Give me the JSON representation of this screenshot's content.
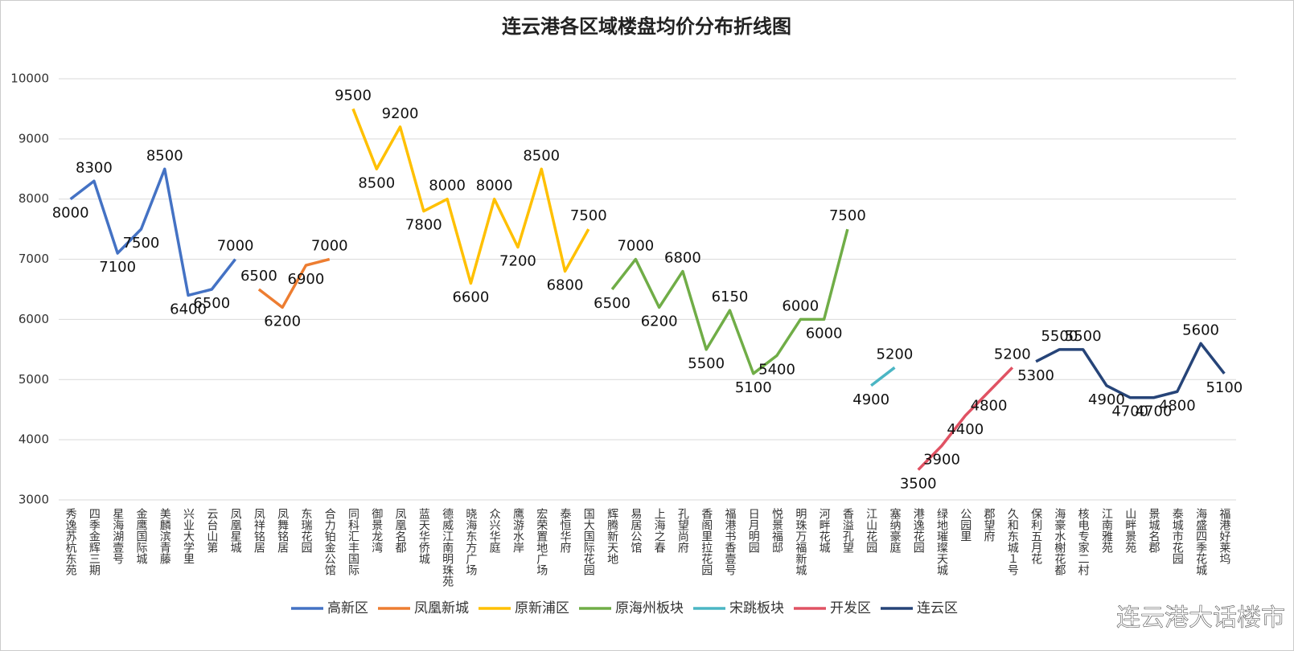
{
  "chart_data": {
    "type": "line",
    "title": "连云港各区域楼盘均价分布折线图",
    "watermark": "连云港大话楼市",
    "categories": [
      "秀逸苏杭东苑",
      "四季金辉三期",
      "星海湖壹号",
      "金鹰国际城",
      "美麟滨青藤",
      "兴业大学里",
      "云台山第",
      "凤凰星城",
      "凤祥铭居",
      "凤舞铭居",
      "东瑞花园",
      "合力铂金公馆",
      "同科汇丰国际",
      "御景龙湾",
      "凤凰名都",
      "蓝天华侨城",
      "德威江南明珠苑",
      "晓海东方广场",
      "众兴华庭",
      "鹰游水岸",
      "宏荣置地广场",
      "泰恒华府",
      "国大国际花园",
      "辉腾新天地",
      "易居公馆",
      "上海之春",
      "孔望尚府",
      "香阁里拉花园",
      "福港书香壹号",
      "日月明园",
      "悦景福邸",
      "明珠万福新城",
      "河畔花城",
      "香溢孔望",
      "江山花园",
      "塞纳豪庭",
      "港逸花园",
      "绿地璀璨天城",
      "公园里",
      "郡望府",
      "久和东城１号",
      "保利五月花",
      "海豪水榭花都",
      "核电专家二村",
      "江南雅苑",
      "山畔景苑",
      "景城名郡",
      "泰城市花园",
      "海盛四季花城",
      "福港好莱坞"
    ],
    "series": [
      {
        "name": "高新区",
        "color": "#4472c4",
        "values": [
          8000,
          8300,
          7100,
          7500,
          8500,
          6400,
          6500,
          7000,
          null,
          null,
          null,
          null,
          null,
          null,
          null,
          null,
          null,
          null,
          null,
          null,
          null,
          null,
          null,
          null,
          null,
          null,
          null,
          null,
          null,
          null,
          null,
          null,
          null,
          null,
          null,
          null,
          null,
          null,
          null,
          null,
          null,
          null,
          null,
          null,
          null,
          null,
          null,
          null,
          null,
          null
        ]
      },
      {
        "name": "凤凰新城",
        "color": "#ed7d31",
        "values": [
          null,
          null,
          null,
          null,
          null,
          null,
          null,
          null,
          6500,
          6200,
          6900,
          7000,
          null,
          null,
          null,
          null,
          null,
          null,
          null,
          null,
          null,
          null,
          null,
          null,
          null,
          null,
          null,
          null,
          null,
          null,
          null,
          null,
          null,
          null,
          null,
          null,
          null,
          null,
          null,
          null,
          null,
          null,
          null,
          null,
          null,
          null,
          null,
          null,
          null,
          null
        ]
      },
      {
        "name": "原新浦区",
        "color": "#ffc000",
        "values": [
          null,
          null,
          null,
          null,
          null,
          null,
          null,
          null,
          null,
          null,
          null,
          null,
          9500,
          8500,
          9200,
          7800,
          8000,
          6600,
          8000,
          7200,
          8500,
          6800,
          7500,
          null,
          null,
          null,
          null,
          null,
          null,
          null,
          null,
          null,
          null,
          null,
          null,
          null,
          null,
          null,
          null,
          null,
          null,
          null,
          null,
          null,
          null,
          null,
          null,
          null,
          null,
          null
        ]
      },
      {
        "name": "原海州板块",
        "color": "#70ad47",
        "values": [
          null,
          null,
          null,
          null,
          null,
          null,
          null,
          null,
          null,
          null,
          null,
          null,
          null,
          null,
          null,
          null,
          null,
          null,
          null,
          null,
          null,
          null,
          null,
          6500,
          7000,
          6200,
          6800,
          5500,
          6150,
          5100,
          5400,
          6000,
          6000,
          7500,
          null,
          null,
          null,
          null,
          null,
          null,
          null,
          null,
          null,
          null,
          null,
          null,
          null,
          null,
          null,
          null
        ]
      },
      {
        "name": "宋跳板块",
        "color": "#4bb6c4",
        "values": [
          null,
          null,
          null,
          null,
          null,
          null,
          null,
          null,
          null,
          null,
          null,
          null,
          null,
          null,
          null,
          null,
          null,
          null,
          null,
          null,
          null,
          null,
          null,
          null,
          null,
          null,
          null,
          null,
          null,
          null,
          null,
          null,
          null,
          null,
          4900,
          5200,
          null,
          null,
          null,
          null,
          null,
          null,
          null,
          null,
          null,
          null,
          null,
          null,
          null,
          null
        ]
      },
      {
        "name": "开发区",
        "color": "#e05263",
        "values": [
          null,
          null,
          null,
          null,
          null,
          null,
          null,
          null,
          null,
          null,
          null,
          null,
          null,
          null,
          null,
          null,
          null,
          null,
          null,
          null,
          null,
          null,
          null,
          null,
          null,
          null,
          null,
          null,
          null,
          null,
          null,
          null,
          null,
          null,
          null,
          null,
          3500,
          3900,
          4400,
          4800,
          5200,
          null,
          null,
          null,
          null,
          null,
          null,
          null,
          null,
          null
        ]
      },
      {
        "name": "连云区",
        "color": "#264478",
        "values": [
          null,
          null,
          null,
          null,
          null,
          null,
          null,
          null,
          null,
          null,
          null,
          null,
          null,
          null,
          null,
          null,
          null,
          null,
          null,
          null,
          null,
          null,
          null,
          null,
          null,
          null,
          null,
          null,
          null,
          null,
          null,
          null,
          null,
          null,
          null,
          null,
          null,
          null,
          null,
          null,
          null,
          5300,
          5500,
          5500,
          4900,
          4700,
          4700,
          4800,
          5600,
          5100
        ]
      }
    ],
    "ylim": [
      3000,
      10000
    ],
    "yticks": [
      3000,
      4000,
      5000,
      6000,
      7000,
      8000,
      9000,
      10000
    ],
    "grid": true,
    "legend": "bottom"
  }
}
